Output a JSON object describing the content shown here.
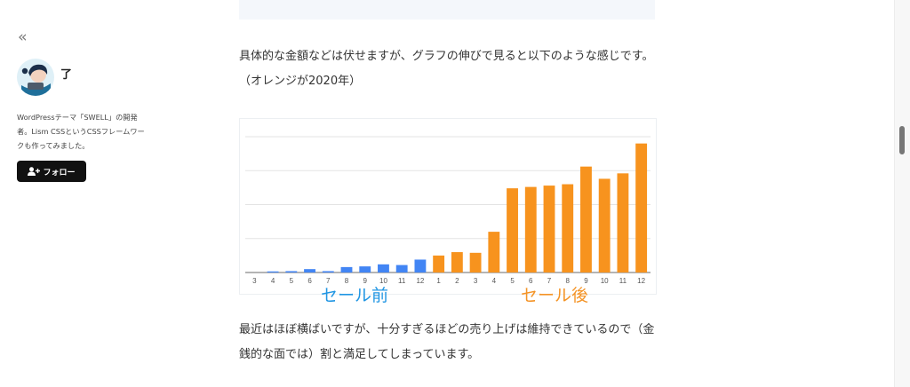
{
  "sidebar": {
    "collapse_icon": "double-chevron-left-icon",
    "author_name": "了",
    "bio": "WordPressテーマ「SWELL」の開発者。Lism CSSというCSSフレームワークも作ってみました。",
    "follow_label": "フォロー"
  },
  "article": {
    "para1": "具体的な金額などは伏せますが、グラフの伸びで見ると以下のような感じです。（オレンジが2020年）",
    "para2": "最近はほぼ横ばいですが、十分すぎるほどの売り上げは維持できているので（金銭的な面では）割と満足してしまっています。",
    "caption_before": "セール前",
    "caption_after": "セール後"
  },
  "colors": {
    "before": "#4285f4",
    "after": "#f7931e"
  },
  "chart_data": {
    "type": "bar",
    "title": "",
    "xlabel": "",
    "ylabel": "",
    "grid": true,
    "ylim": [
      0,
      100
    ],
    "categories": [
      "3",
      "4",
      "5",
      "6",
      "7",
      "8",
      "9",
      "10",
      "11",
      "12",
      "1",
      "2",
      "3",
      "4",
      "5",
      "6",
      "7",
      "8",
      "9",
      "10",
      "11",
      "12"
    ],
    "series": [
      {
        "name": "セール前",
        "values": [
          0,
          0.8,
          1,
          2.5,
          1,
          4,
          4.5,
          6,
          5.5,
          9.5,
          null,
          null,
          null,
          null,
          null,
          null,
          null,
          null,
          null,
          null,
          null,
          null
        ]
      },
      {
        "name": "セール後",
        "values": [
          null,
          null,
          null,
          null,
          null,
          null,
          null,
          null,
          null,
          null,
          12.5,
          15,
          14.5,
          30,
          62,
          63,
          64,
          65,
          78,
          69,
          73,
          95
        ]
      }
    ]
  }
}
